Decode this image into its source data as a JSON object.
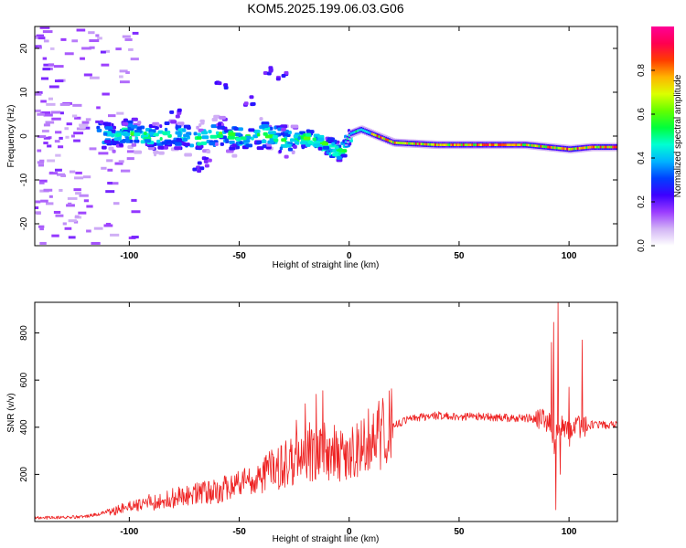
{
  "title": "KOM5.2025.199.06.03.G06",
  "chart_data": [
    {
      "type": "heatmap",
      "xlabel": "Height of straight line (km)",
      "ylabel": "Frequency (Hz)",
      "xlim": [
        -143,
        122
      ],
      "ylim": [
        -25,
        25
      ],
      "xticks": [
        -100,
        -50,
        0,
        50,
        100
      ],
      "yticks": [
        -20,
        -10,
        0,
        10,
        20
      ],
      "grid": false,
      "colorbar": {
        "label": "Normalized spectral amplitude",
        "ticks": [
          0.0,
          0.2,
          0.4,
          0.6,
          0.8
        ],
        "range": [
          0,
          1
        ],
        "colors": [
          "#ffffff",
          "#d2b4f5",
          "#9b3cff",
          "#3c00ff",
          "#0040ff",
          "#00b4ff",
          "#00ffd2",
          "#00ff3c",
          "#64ff00",
          "#dcff00",
          "#ffb400",
          "#ff3c00",
          "#ff0050",
          "#ff0096"
        ]
      },
      "ridge": {
        "x": [
          -115,
          -100,
          -90,
          -80,
          -70,
          -60,
          -50,
          -40,
          -30,
          -20,
          -10,
          -5,
          0,
          5,
          10,
          20,
          40,
          60,
          80,
          90,
          100,
          110,
          122
        ],
        "frequency": [
          0,
          0.5,
          -0.5,
          0.5,
          -1,
          0.5,
          -0.5,
          0.5,
          -1,
          -0.5,
          -2.5,
          -4,
          0.5,
          1.5,
          0.5,
          -1.5,
          -2,
          -2,
          -2,
          -2.5,
          -3,
          -2.5,
          -2.5
        ]
      }
    },
    {
      "type": "line",
      "xlabel": "Height of straight line (km)",
      "ylabel": "SNR (v/v)",
      "xlim": [
        -143,
        122
      ],
      "ylim": [
        0,
        930
      ],
      "xticks": [
        -100,
        -50,
        0,
        50,
        100
      ],
      "yticks": [
        200,
        400,
        600,
        800
      ],
      "grid": false,
      "series": [
        {
          "color": "#ee2222",
          "envelope": {
            "x": [
              -143,
              -120,
              -110,
              -100,
              -90,
              -80,
              -70,
              -60,
              -50,
              -40,
              -30,
              -20,
              -15,
              -10,
              -5,
              0,
              5,
              10,
              20,
              30,
              40,
              50,
              60,
              70,
              80,
              85,
              88,
              90,
              92,
              93,
              94,
              95,
              96,
              98,
              100,
              102,
              104,
              106,
              108,
              110,
              122
            ],
            "y": [
              15,
              20,
              40,
              60,
              80,
              100,
              115,
              130,
              150,
              190,
              240,
              270,
              290,
              300,
              290,
              290,
              330,
              350,
              410,
              440,
              450,
              445,
              445,
              440,
              440,
              435,
              430,
              420,
              400,
              300,
              380,
              400,
              410,
              400,
              370,
              380,
              410,
              410,
              400,
              410,
              410
            ]
          },
          "peaks": [
            {
              "x": -91,
              "y": 115
            },
            {
              "x": -70,
              "y": 160
            },
            {
              "x": -56,
              "y": 190
            },
            {
              "x": -38,
              "y": 270
            },
            {
              "x": -24,
              "y": 430
            },
            {
              "x": -20,
              "y": 500
            },
            {
              "x": -18,
              "y": 420
            },
            {
              "x": -15,
              "y": 540
            },
            {
              "x": -12,
              "y": 555
            },
            {
              "x": -9,
              "y": 350
            },
            {
              "x": 92,
              "y": 760
            },
            {
              "x": 93,
              "y": 845
            },
            {
              "x": 94,
              "y": 50
            },
            {
              "x": 95,
              "y": 930
            },
            {
              "x": 96,
              "y": 200
            },
            {
              "x": 100,
              "y": 570
            },
            {
              "x": 103,
              "y": 440
            },
            {
              "x": 106,
              "y": 770
            }
          ]
        }
      ]
    }
  ]
}
